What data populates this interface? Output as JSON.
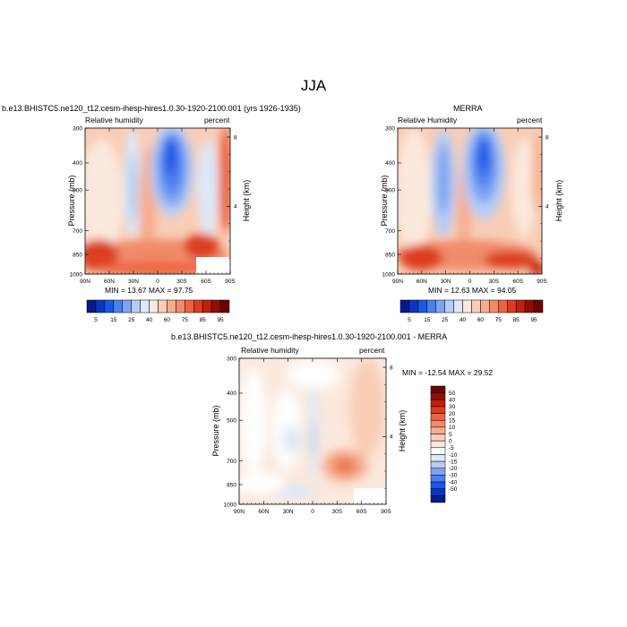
{
  "figure": {
    "title": "JJA"
  },
  "palettes": {
    "rh": [
      "#051a8c",
      "#0a35c2",
      "#1a57e6",
      "#4a7ff0",
      "#7ea3f2",
      "#b5cdf5",
      "#dde8f8",
      "#fbe9dd",
      "#f9cdb6",
      "#f6ad8f",
      "#f28b6a",
      "#ec6442",
      "#dc3c1f",
      "#c0200d",
      "#920d04",
      "#6b0500"
    ],
    "diff": [
      "#051a8c",
      "#0a35c2",
      "#1a57e6",
      "#4a7ff0",
      "#7ea3f2",
      "#b5cdf5",
      "#dde8f8",
      "#ffffff",
      "#fbe9dd",
      "#f9cdb6",
      "#f6ad8f",
      "#f28b6a",
      "#ec6442",
      "#dc3c1f",
      "#c0200d",
      "#920d04",
      "#6b0500"
    ]
  },
  "chart_data": [
    {
      "type": "heatmap",
      "title": "b.e13.BHISTC5.ne120_t12.cesm-ihesp-hires1.0.30-1920-2100.001 (yrs 1926-1935)",
      "left_label": "Relative humidity",
      "right_label": "percent",
      "ylabel": "Pressure (mb)",
      "ylabel_right": "Height (km)",
      "x_ticks": [
        "90N",
        "60N",
        "30N",
        "0",
        "30S",
        "60S",
        "90S"
      ],
      "y_ticks": [
        "300",
        "400",
        "500",
        "700",
        "850",
        "1000"
      ],
      "height_ticks": [
        "8",
        "4"
      ],
      "min_max_text": "MIN =  13.67  MAX =  97.75",
      "colorbar_labels": [
        "5",
        "15",
        "25",
        "40",
        "60",
        "75",
        "85",
        "95"
      ],
      "palette": "rh"
    },
    {
      "type": "heatmap",
      "title": "MERRA",
      "left_label": "Relative Humidity",
      "right_label": "percent",
      "ylabel": "Pressure (mb)",
      "ylabel_right": "Height (km)",
      "x_ticks": [
        "90N",
        "60N",
        "30N",
        "0",
        "30S",
        "60S",
        "90S"
      ],
      "y_ticks": [
        "300",
        "400",
        "500",
        "700",
        "850",
        "1000"
      ],
      "height_ticks": [
        "8",
        "4"
      ],
      "min_max_text": "MIN =  12.63  MAX =  94.05",
      "colorbar_labels": [
        "5",
        "15",
        "25",
        "40",
        "60",
        "75",
        "85",
        "95"
      ],
      "palette": "rh"
    },
    {
      "type": "heatmap",
      "title": "b.e13.BHISTC5.ne120_t12.cesm-ihesp-hires1.0.30-1920-2100.001 - MERRA",
      "left_label": "Relative humidity",
      "right_label": "percent",
      "ylabel": "Pressure (mb)",
      "ylabel_right": "Height (km)",
      "x_ticks": [
        "90N",
        "60N",
        "30N",
        "0",
        "30S",
        "60S",
        "90S"
      ],
      "y_ticks": [
        "300",
        "400",
        "500",
        "700",
        "850",
        "1000"
      ],
      "height_ticks": [
        "8",
        "4"
      ],
      "min_max_text": "MIN = -12.54  MAX =  29.52",
      "colorbar_labels": [
        "50",
        "40",
        "30",
        "20",
        "15",
        "10",
        "5",
        "0",
        "-5",
        "-10",
        "-15",
        "-20",
        "-30",
        "-40",
        "-50"
      ],
      "palette": "diff"
    }
  ]
}
